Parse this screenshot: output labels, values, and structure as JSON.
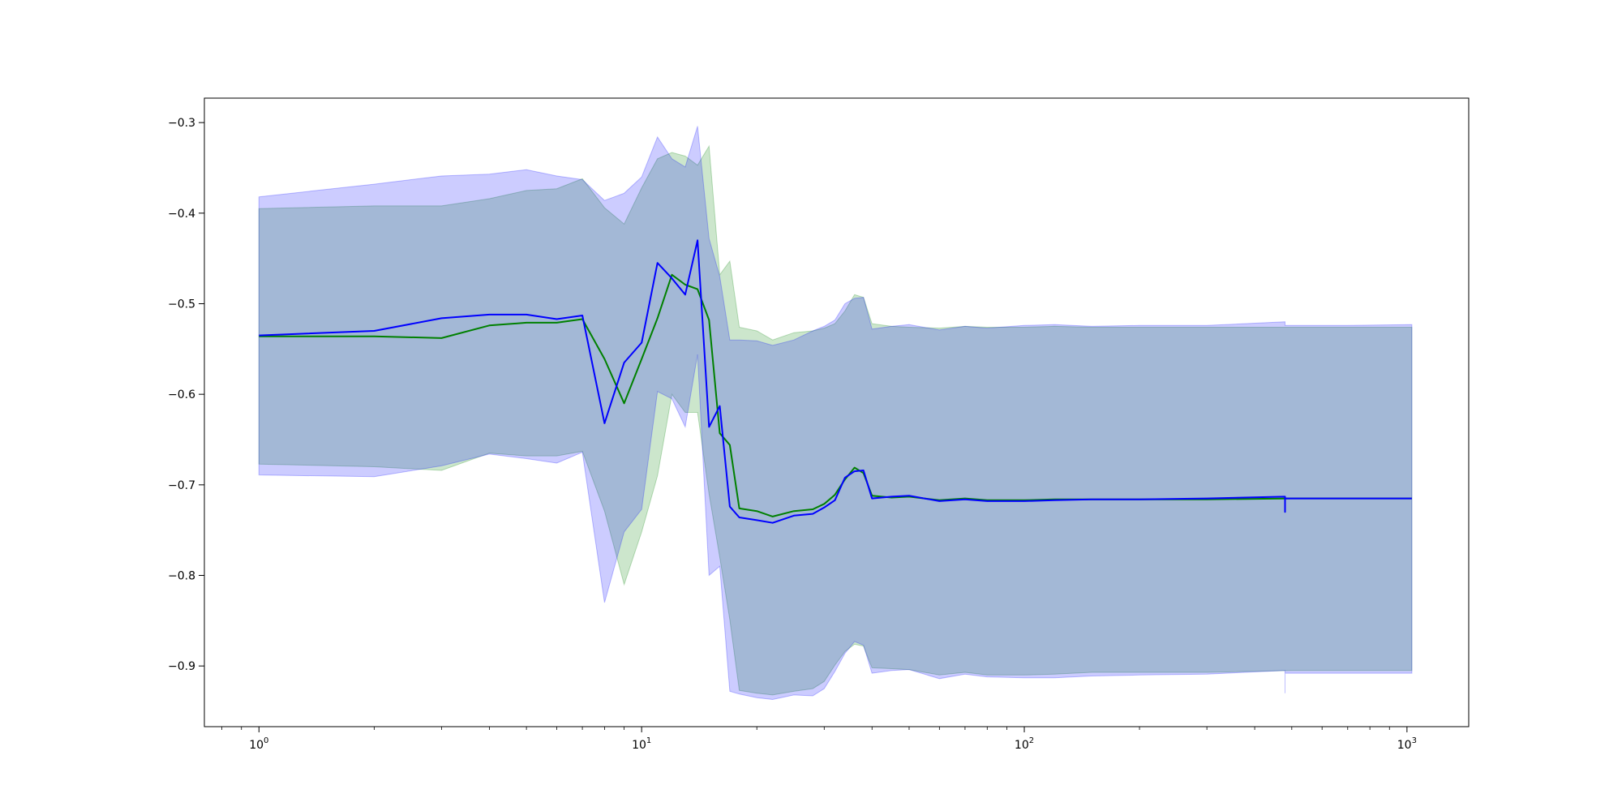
{
  "chart_data": {
    "type": "line",
    "title": "",
    "xlabel": "",
    "ylabel": "",
    "xscale": "log",
    "xlim": [
      0.72,
      1450
    ],
    "ylim": [
      -0.967,
      -0.273
    ],
    "x_ticks": [
      {
        "base": "10",
        "exp": "0",
        "value": 1
      },
      {
        "base": "10",
        "exp": "1",
        "value": 10
      },
      {
        "base": "10",
        "exp": "2",
        "value": 100
      },
      {
        "base": "10",
        "exp": "3",
        "value": 1000
      }
    ],
    "y_ticks": [
      {
        "label": "−0.3",
        "value": -0.3
      },
      {
        "label": "−0.4",
        "value": -0.4
      },
      {
        "label": "−0.5",
        "value": -0.5
      },
      {
        "label": "−0.6",
        "value": -0.6
      },
      {
        "label": "−0.7",
        "value": -0.7
      },
      {
        "label": "−0.8",
        "value": -0.8
      },
      {
        "label": "−0.9",
        "value": -0.9
      }
    ],
    "grid": false,
    "legend": "none",
    "series": [
      {
        "color": "#008000",
        "band_color": "#008000",
        "band_opacity": 0.2,
        "x": [
          1,
          2,
          3,
          4,
          5,
          6,
          7,
          8,
          9,
          10,
          11,
          12,
          13,
          14,
          15,
          16,
          17,
          18,
          20,
          22,
          25,
          28,
          30,
          32,
          34,
          36,
          38,
          40,
          45,
          50,
          60,
          70,
          80,
          100,
          120,
          150,
          200,
          300,
          500,
          700,
          1030
        ],
        "y": [
          -0.536,
          -0.536,
          -0.538,
          -0.524,
          -0.521,
          -0.521,
          -0.517,
          -0.561,
          -0.61,
          -0.561,
          -0.516,
          -0.468,
          -0.479,
          -0.484,
          -0.518,
          -0.643,
          -0.656,
          -0.726,
          -0.729,
          -0.735,
          -0.729,
          -0.727,
          -0.721,
          -0.711,
          -0.694,
          -0.681,
          -0.687,
          -0.712,
          -0.714,
          -0.713,
          -0.717,
          -0.715,
          -0.717,
          -0.717,
          -0.716,
          -0.716,
          -0.716,
          -0.716,
          -0.715,
          -0.715,
          -0.715
        ],
        "upper": [
          -0.395,
          -0.392,
          -0.392,
          -0.384,
          -0.375,
          -0.373,
          -0.362,
          -0.394,
          -0.412,
          -0.372,
          -0.34,
          -0.333,
          -0.337,
          -0.347,
          -0.326,
          -0.468,
          -0.453,
          -0.526,
          -0.53,
          -0.54,
          -0.532,
          -0.53,
          -0.527,
          -0.522,
          -0.508,
          -0.49,
          -0.493,
          -0.522,
          -0.525,
          -0.526,
          -0.527,
          -0.525,
          -0.526,
          -0.526,
          -0.525,
          -0.526,
          -0.526,
          -0.526,
          -0.526,
          -0.526,
          -0.526
        ],
        "lower": [
          -0.677,
          -0.68,
          -0.684,
          -0.665,
          -0.668,
          -0.668,
          -0.663,
          -0.729,
          -0.81,
          -0.752,
          -0.69,
          -0.6,
          -0.62,
          -0.62,
          -0.71,
          -0.78,
          -0.849,
          -0.927,
          -0.93,
          -0.932,
          -0.928,
          -0.925,
          -0.917,
          -0.899,
          -0.884,
          -0.876,
          -0.878,
          -0.902,
          -0.903,
          -0.904,
          -0.91,
          -0.907,
          -0.91,
          -0.91,
          -0.909,
          -0.907,
          -0.907,
          -0.907,
          -0.905,
          -0.905,
          -0.905
        ]
      },
      {
        "color": "#0000ff",
        "band_color": "#0000ff",
        "band_opacity": 0.2,
        "x": [
          1,
          2,
          3,
          4,
          5,
          6,
          7,
          8,
          9,
          10,
          11,
          12,
          13,
          14,
          15,
          16,
          17,
          18,
          20,
          22,
          25,
          28,
          30,
          32,
          34,
          36,
          38,
          40,
          45,
          50,
          60,
          70,
          80,
          100,
          120,
          150,
          200,
          300,
          480,
          480,
          480,
          700,
          1030
        ],
        "y": [
          -0.535,
          -0.53,
          -0.516,
          -0.512,
          -0.512,
          -0.517,
          -0.513,
          -0.632,
          -0.565,
          -0.543,
          -0.455,
          -0.472,
          -0.49,
          -0.43,
          -0.636,
          -0.613,
          -0.724,
          -0.736,
          -0.739,
          -0.742,
          -0.734,
          -0.732,
          -0.725,
          -0.717,
          -0.692,
          -0.685,
          -0.684,
          -0.715,
          -0.713,
          -0.712,
          -0.718,
          -0.716,
          -0.718,
          -0.718,
          -0.717,
          -0.716,
          -0.716,
          -0.715,
          -0.713,
          -0.73,
          -0.715,
          -0.715,
          -0.715
        ],
        "upper": [
          -0.382,
          -0.368,
          -0.359,
          -0.357,
          -0.352,
          -0.359,
          -0.363,
          -0.386,
          -0.378,
          -0.36,
          -0.316,
          -0.34,
          -0.349,
          -0.304,
          -0.428,
          -0.47,
          -0.54,
          -0.54,
          -0.541,
          -0.546,
          -0.54,
          -0.53,
          -0.525,
          -0.518,
          -0.5,
          -0.494,
          -0.493,
          -0.528,
          -0.525,
          -0.523,
          -0.529,
          -0.525,
          -0.527,
          -0.524,
          -0.523,
          -0.525,
          -0.524,
          -0.524,
          -0.52,
          -0.522,
          -0.524,
          -0.524,
          -0.523
        ],
        "lower": [
          -0.689,
          -0.691,
          -0.679,
          -0.666,
          -0.671,
          -0.676,
          -0.664,
          -0.83,
          -0.752,
          -0.727,
          -0.597,
          -0.605,
          -0.636,
          -0.556,
          -0.8,
          -0.79,
          -0.928,
          -0.931,
          -0.935,
          -0.937,
          -0.932,
          -0.933,
          -0.925,
          -0.906,
          -0.886,
          -0.873,
          -0.877,
          -0.908,
          -0.905,
          -0.904,
          -0.914,
          -0.909,
          -0.912,
          -0.913,
          -0.913,
          -0.911,
          -0.91,
          -0.909,
          -0.905,
          -0.93,
          -0.908,
          -0.908,
          -0.908
        ]
      }
    ]
  }
}
